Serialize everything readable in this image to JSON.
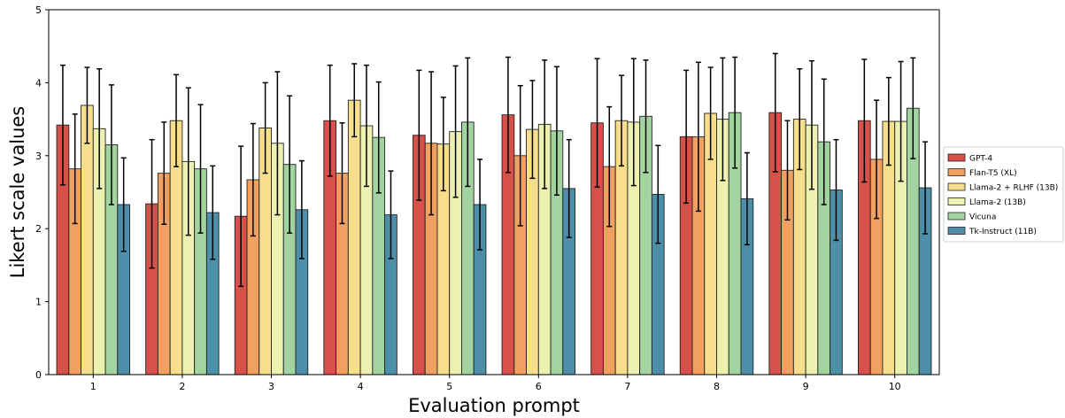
{
  "chart_data": {
    "type": "bar",
    "xlabel": "Evaluation prompt",
    "ylabel": "Likert scale values",
    "ylim": [
      0,
      5
    ],
    "yticks": [
      "0",
      "1",
      "2",
      "3",
      "4",
      "5"
    ],
    "categories": [
      "1",
      "2",
      "3",
      "4",
      "5",
      "6",
      "7",
      "8",
      "9",
      "10"
    ],
    "grid": false,
    "legend_position": "right",
    "series": [
      {
        "name": "GPT-4",
        "color": "#d5514a",
        "values": [
          3.42,
          2.34,
          2.17,
          3.48,
          3.28,
          3.56,
          3.45,
          3.26,
          3.59,
          3.48
        ],
        "errors": [
          0.82,
          0.88,
          0.96,
          0.76,
          0.89,
          0.79,
          0.88,
          0.91,
          0.81,
          0.84
        ]
      },
      {
        "name": "Flan-T5 (XL)",
        "color": "#f0a060",
        "values": [
          2.82,
          2.76,
          2.67,
          2.76,
          3.17,
          3.0,
          2.85,
          3.26,
          2.8,
          2.95
        ],
        "errors": [
          0.75,
          0.7,
          0.77,
          0.69,
          0.98,
          0.96,
          0.82,
          1.02,
          0.68,
          0.81
        ]
      },
      {
        "name": "Llama-2 + RLHF (13B)",
        "color": "#f6de8d",
        "values": [
          3.69,
          3.48,
          3.38,
          3.76,
          3.16,
          3.36,
          3.48,
          3.58,
          3.5,
          3.47
        ],
        "errors": [
          0.52,
          0.63,
          0.62,
          0.5,
          0.64,
          0.67,
          0.62,
          0.63,
          0.69,
          0.6
        ]
      },
      {
        "name": "Llama-2 (13B)",
        "color": "#ecf1b0",
        "values": [
          3.37,
          2.92,
          3.17,
          3.41,
          3.33,
          3.43,
          3.46,
          3.5,
          3.42,
          3.47
        ],
        "errors": [
          0.82,
          1.01,
          0.98,
          0.83,
          0.9,
          0.88,
          0.87,
          0.84,
          0.88,
          0.82
        ]
      },
      {
        "name": "Vicuna",
        "color": "#a2d3a0",
        "values": [
          3.15,
          2.82,
          2.88,
          3.25,
          3.46,
          3.34,
          3.54,
          3.59,
          3.19,
          3.65
        ],
        "errors": [
          0.82,
          0.88,
          0.94,
          0.76,
          0.88,
          0.88,
          0.77,
          0.76,
          0.86,
          0.69
        ]
      },
      {
        "name": "Tk-Instruct (11B)",
        "color": "#4d8fa8",
        "values": [
          2.33,
          2.22,
          2.26,
          2.19,
          2.33,
          2.55,
          2.47,
          2.41,
          2.53,
          2.56
        ],
        "errors": [
          0.64,
          0.64,
          0.67,
          0.6,
          0.62,
          0.67,
          0.67,
          0.63,
          0.69,
          0.63
        ]
      }
    ]
  }
}
